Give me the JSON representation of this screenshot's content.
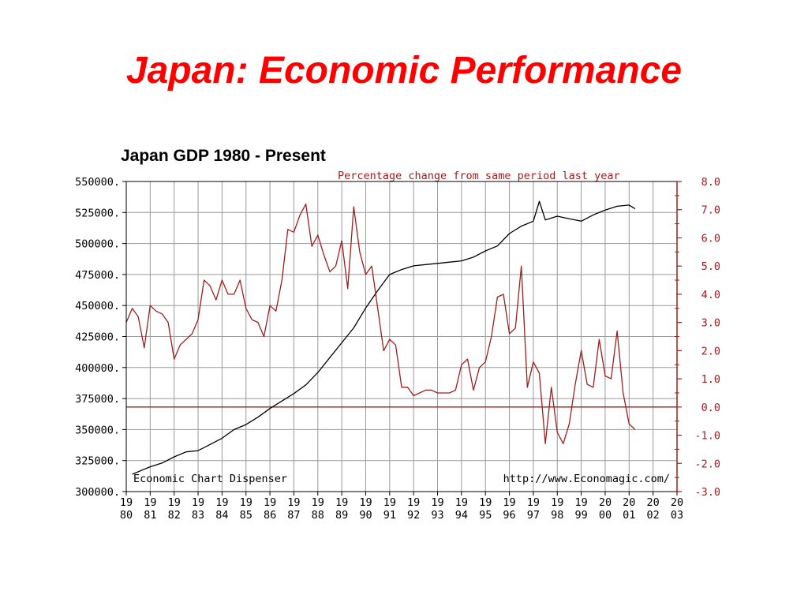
{
  "slide": {
    "title": "Japan: Economic Performance"
  },
  "colors": {
    "title": "#ff0000",
    "gdp_line": "#000000",
    "pct_line": "#a11d1d",
    "grid": "#9a9a9a",
    "background": "#ffffff"
  },
  "chart_data": {
    "type": "line",
    "title": "Japan GDP 1980 - Present",
    "subtitle": "Percentage change from same period last year",
    "credit_left": "Economic Chart Dispenser",
    "credit_right": "http://www.Economagic.com/",
    "grid": true,
    "x_ticks": [
      "1980",
      "1981",
      "1982",
      "1983",
      "1984",
      "1985",
      "1986",
      "1987",
      "1988",
      "1989",
      "1990",
      "1991",
      "1992",
      "1993",
      "1994",
      "1995",
      "1996",
      "1997",
      "1998",
      "1999",
      "2000",
      "2001",
      "2002",
      "2003"
    ],
    "x_range": [
      1980,
      2003
    ],
    "left_axis": {
      "range": [
        300000,
        550000
      ],
      "ticks": [
        "550000.",
        "525000.",
        "500000.",
        "475000.",
        "450000.",
        "425000.",
        "400000.",
        "375000.",
        "350000.",
        "325000.",
        "300000."
      ]
    },
    "right_axis": {
      "range": [
        -3,
        8
      ],
      "ticks": [
        "8.0",
        "7.0",
        "6.0",
        "5.0",
        "4.0",
        "3.0",
        "2.0",
        "1.0",
        "0.0",
        "-1.0",
        "-2.0",
        "-3.0"
      ],
      "reference_line": 0
    },
    "series": [
      {
        "axis": "left",
        "color": "#000000",
        "x": [
          1980.25,
          1980.75,
          1981.0,
          1981.5,
          1982.0,
          1982.5,
          1983.0,
          1983.5,
          1984.0,
          1984.5,
          1985.0,
          1985.5,
          1986.0,
          1986.5,
          1987.0,
          1987.5,
          1988.0,
          1988.5,
          1989.0,
          1989.5,
          1990.0,
          1990.5,
          1991.0,
          1991.5,
          1992.0,
          1992.5,
          1993.0,
          1993.5,
          1994.0,
          1994.5,
          1995.0,
          1995.5,
          1996.0,
          1996.5,
          1997.0,
          1997.25,
          1997.5,
          1998.0,
          1998.5,
          1999.0,
          1999.5,
          2000.0,
          2000.5,
          2001.0,
          2001.25
        ],
        "values": [
          314000,
          318000,
          320000,
          323000,
          328000,
          332000,
          333000,
          338000,
          343000,
          350000,
          354000,
          360000,
          367000,
          373000,
          379000,
          386000,
          396000,
          408000,
          420000,
          432000,
          448000,
          462000,
          475000,
          479000,
          482000,
          483000,
          484000,
          485000,
          486000,
          489000,
          494000,
          498000,
          508000,
          514000,
          518000,
          534000,
          519000,
          522000,
          520000,
          518000,
          523000,
          527000,
          530000,
          531000,
          528000
        ]
      },
      {
        "axis": "right",
        "color": "#a11d1d",
        "x": [
          1980.0,
          1980.25,
          1980.5,
          1980.75,
          1981.0,
          1981.25,
          1981.5,
          1981.75,
          1982.0,
          1982.25,
          1982.5,
          1982.75,
          1983.0,
          1983.25,
          1983.5,
          1983.75,
          1984.0,
          1984.25,
          1984.5,
          1984.75,
          1985.0,
          1985.25,
          1985.5,
          1985.75,
          1986.0,
          1986.25,
          1986.5,
          1986.75,
          1987.0,
          1987.25,
          1987.5,
          1987.75,
          1988.0,
          1988.25,
          1988.5,
          1988.75,
          1989.0,
          1989.25,
          1989.5,
          1989.75,
          1990.0,
          1990.25,
          1990.5,
          1990.75,
          1991.0,
          1991.25,
          1991.5,
          1991.75,
          1992.0,
          1992.25,
          1992.5,
          1992.75,
          1993.0,
          1993.25,
          1993.5,
          1993.75,
          1994.0,
          1994.25,
          1994.5,
          1994.75,
          1995.0,
          1995.25,
          1995.5,
          1995.75,
          1996.0,
          1996.25,
          1996.5,
          1996.75,
          1997.0,
          1997.25,
          1997.5,
          1997.75,
          1998.0,
          1998.25,
          1998.5,
          1998.75,
          1999.0,
          1999.25,
          1999.5,
          1999.75,
          2000.0,
          2000.25,
          2000.5,
          2000.75,
          2001.0,
          2001.25
        ],
        "values": [
          3.0,
          3.5,
          3.2,
          2.1,
          3.6,
          3.4,
          3.3,
          3.0,
          1.7,
          2.2,
          2.4,
          2.6,
          3.1,
          4.5,
          4.3,
          3.8,
          4.5,
          4.0,
          4.0,
          4.5,
          3.5,
          3.1,
          3.0,
          2.5,
          3.6,
          3.4,
          4.5,
          6.3,
          6.2,
          6.8,
          7.2,
          5.7,
          6.1,
          5.4,
          4.8,
          5.0,
          5.9,
          4.2,
          7.1,
          5.5,
          4.7,
          5.0,
          3.5,
          2.0,
          2.4,
          2.2,
          0.7,
          0.7,
          0.4,
          0.5,
          0.6,
          0.6,
          0.5,
          0.5,
          0.5,
          0.6,
          1.5,
          1.7,
          0.6,
          1.4,
          1.6,
          2.5,
          3.9,
          4.0,
          2.6,
          2.8,
          5.0,
          0.7,
          1.6,
          1.2,
          -1.3,
          0.7,
          -0.9,
          -1.3,
          -0.6,
          0.8,
          2.0,
          0.8,
          0.7,
          2.4,
          1.1,
          1.0,
          2.7,
          0.5,
          -0.6,
          -0.8
        ]
      }
    ]
  }
}
